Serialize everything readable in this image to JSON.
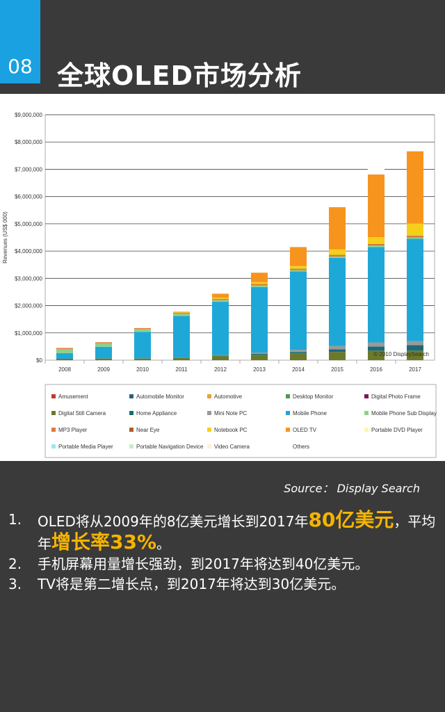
{
  "slide": {
    "number": "08",
    "title": "全球OLED市场分析"
  },
  "chart_data": {
    "type": "bar",
    "stacked": true,
    "ylabel": "Revenues (US$ 000)",
    "ylim": [
      0,
      9000000
    ],
    "yticks": [
      "$0",
      "$1,000,000",
      "$2,000,000",
      "$3,000,000",
      "$4,000,000",
      "$5,000,000",
      "$6,000,000",
      "$7,000,000",
      "$8,000,000",
      "$9,000,000"
    ],
    "categories": [
      "2008",
      "2009",
      "2010",
      "2011",
      "2012",
      "2013",
      "2014",
      "2015",
      "2016",
      "2017"
    ],
    "copyright": "© 2010 DisplaySearch",
    "legend_position": "bottom",
    "series": [
      {
        "name": "Amusement",
        "color": "#c0392b",
        "values": [
          0,
          0,
          0,
          0,
          0,
          0,
          0,
          0,
          0,
          0
        ]
      },
      {
        "name": "Automobile Monitor",
        "color": "#2e5f7a",
        "values": [
          0,
          0,
          0,
          0,
          0,
          0,
          0,
          0,
          0,
          0
        ]
      },
      {
        "name": "Automotive",
        "color": "#f0a030",
        "values": [
          0,
          0,
          0,
          0,
          0,
          0,
          0,
          0,
          0,
          0
        ]
      },
      {
        "name": "Desktop Monitor",
        "color": "#4a9a5a",
        "values": [
          0,
          0,
          0,
          0,
          0,
          0,
          0,
          0,
          0,
          0
        ]
      },
      {
        "name": "Digital Photo Frame",
        "color": "#7a1a5a",
        "values": [
          0,
          0,
          0,
          0,
          0,
          0,
          0,
          0,
          0,
          0
        ]
      },
      {
        "name": "Digital Still Camera",
        "color": "#6a7a2a",
        "values": [
          50000,
          60000,
          60000,
          80000,
          150000,
          200000,
          250000,
          300000,
          350000,
          350000
        ]
      },
      {
        "name": "Home Appliance",
        "color": "#1a6a7a",
        "values": [
          10000,
          10000,
          10000,
          10000,
          20000,
          30000,
          50000,
          100000,
          150000,
          200000
        ]
      },
      {
        "name": "Mini Note PC",
        "color": "#9a9a9a",
        "values": [
          0,
          0,
          0,
          10000,
          20000,
          50000,
          80000,
          120000,
          150000,
          150000
        ]
      },
      {
        "name": "Mobile Phone",
        "color": "#1ea8d8",
        "values": [
          200000,
          420000,
          970000,
          1520000,
          1950000,
          2400000,
          2870000,
          3230000,
          3500000,
          3750000
        ]
      },
      {
        "name": "Mobile Phone Sub Display",
        "color": "#8ed08a",
        "values": [
          150000,
          130000,
          100000,
          80000,
          60000,
          60000,
          50000,
          50000,
          50000,
          50000
        ]
      },
      {
        "name": "MP3 Player",
        "color": "#e07a3a",
        "values": [
          40000,
          40000,
          40000,
          40000,
          40000,
          40000,
          40000,
          40000,
          40000,
          40000
        ]
      },
      {
        "name": "Near Eye",
        "color": "#b05a2a",
        "values": [
          0,
          0,
          0,
          0,
          10000,
          10000,
          10000,
          20000,
          20000,
          20000
        ]
      },
      {
        "name": "Notebook PC",
        "color": "#f5cf1a",
        "values": [
          0,
          0,
          0,
          20000,
          40000,
          70000,
          100000,
          200000,
          250000,
          450000
        ]
      },
      {
        "name": "OLED TV",
        "color": "#f7941d",
        "values": [
          0,
          0,
          0,
          20000,
          150000,
          350000,
          700000,
          1550000,
          2300000,
          2650000
        ]
      },
      {
        "name": "Portable DVD Player",
        "color": "#fff5b0",
        "values": [
          0,
          0,
          0,
          0,
          0,
          0,
          0,
          0,
          0,
          0
        ]
      },
      {
        "name": "Portable Media Player",
        "color": "#9ae8f0",
        "values": [
          0,
          0,
          0,
          0,
          0,
          0,
          0,
          0,
          0,
          0
        ]
      },
      {
        "name": "Portable Navigation Device",
        "color": "#c8ecc8",
        "values": [
          0,
          0,
          0,
          0,
          0,
          0,
          0,
          0,
          0,
          0
        ]
      },
      {
        "name": "Video Camera",
        "color": "#fff0d0",
        "values": [
          0,
          0,
          0,
          0,
          0,
          0,
          0,
          0,
          0,
          0
        ]
      },
      {
        "name": "Others",
        "color": "#ffffff",
        "values": [
          150000,
          140000,
          120000,
          140000,
          160000,
          170000,
          200000,
          220000,
          240000,
          250000
        ]
      }
    ]
  },
  "source": "Source： Display Search",
  "points": [
    {
      "num": "1.",
      "parts": [
        "OLED将从2009年的8亿美元增长到2017年",
        "80亿美元",
        "，平均年",
        "增长率33%",
        "。"
      ]
    },
    {
      "num": "2.",
      "text": "手机屏幕用量增长强劲，到2017年将达到40亿美元。"
    },
    {
      "num": "3.",
      "text": "TV将是第二增长点，到2017年将达到30亿美元。"
    }
  ]
}
